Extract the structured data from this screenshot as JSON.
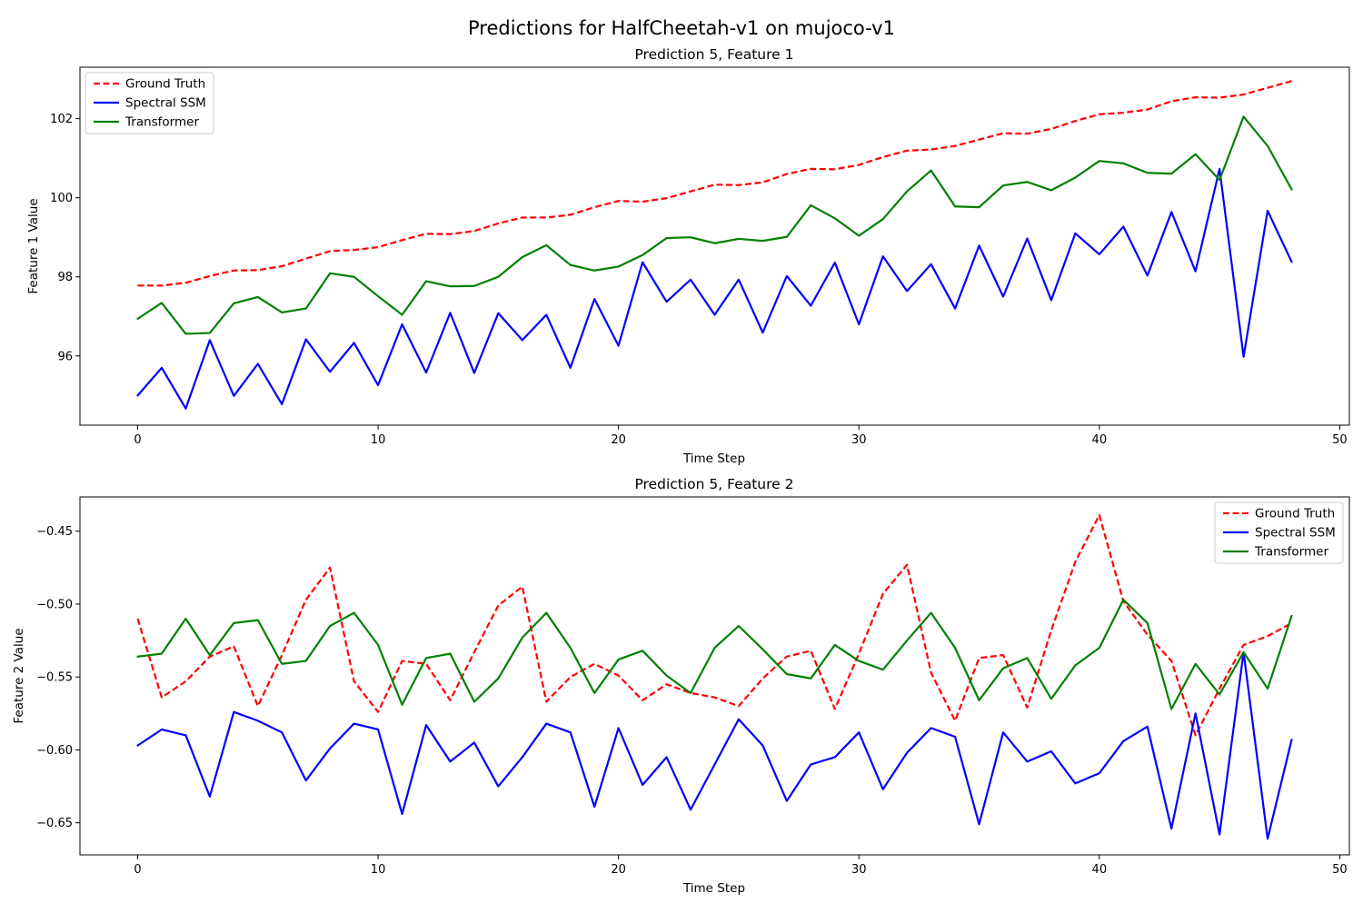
{
  "figure": {
    "suptitle": "Predictions for HalfCheetah-v1 on mujoco-v1"
  },
  "chart_data": [
    {
      "type": "line",
      "title": "Prediction 5, Feature 1",
      "xlabel": "Time Step",
      "ylabel": "Feature 1 Value",
      "xlim": [
        -2.4,
        50.4
      ],
      "ylim": [
        94.25,
        103.3
      ],
      "xticks": [
        0,
        10,
        20,
        30,
        40,
        50
      ],
      "yticks": [
        96,
        98,
        100,
        102
      ],
      "legend_position": "upper-left",
      "grid": false,
      "x": [
        0,
        1,
        2,
        3,
        4,
        5,
        6,
        7,
        8,
        9,
        10,
        11,
        12,
        13,
        14,
        15,
        16,
        17,
        18,
        19,
        20,
        21,
        22,
        23,
        24,
        25,
        26,
        27,
        28,
        29,
        30,
        31,
        32,
        33,
        34,
        35,
        36,
        37,
        38,
        39,
        40,
        41,
        42,
        43,
        44,
        45,
        46,
        47,
        48
      ],
      "series": [
        {
          "name": "Ground Truth",
          "color": "#ff0000",
          "dashed": true,
          "values": [
            97.78,
            97.78,
            97.85,
            98.02,
            98.16,
            98.17,
            98.27,
            98.46,
            98.65,
            98.68,
            98.75,
            98.93,
            99.09,
            99.08,
            99.16,
            99.35,
            99.5,
            99.5,
            99.57,
            99.76,
            99.92,
            99.9,
            99.99,
            100.16,
            100.33,
            100.32,
            100.39,
            100.6,
            100.73,
            100.72,
            100.83,
            101.03,
            101.19,
            101.22,
            101.31,
            101.47,
            101.63,
            101.62,
            101.74,
            101.94,
            102.11,
            102.15,
            102.23,
            102.44,
            102.54,
            102.53,
            102.61,
            102.78,
            102.95
          ]
        },
        {
          "name": "Spectral SSM",
          "color": "#0000ff",
          "dashed": false,
          "values": [
            95.0,
            95.7,
            94.67,
            96.4,
            94.99,
            95.8,
            94.78,
            96.42,
            95.6,
            96.33,
            95.26,
            96.8,
            95.58,
            97.09,
            95.57,
            97.08,
            96.4,
            97.04,
            95.7,
            97.44,
            96.26,
            98.37,
            97.37,
            97.93,
            97.04,
            97.93,
            96.59,
            98.02,
            97.27,
            98.36,
            96.8,
            98.52,
            97.64,
            98.32,
            97.2,
            98.79,
            97.5,
            98.97,
            97.41,
            99.1,
            98.57,
            99.27,
            98.03,
            99.64,
            98.14,
            100.73,
            95.98,
            99.67,
            98.38
          ]
        },
        {
          "name": "Transformer",
          "color": "#008000",
          "dashed": false,
          "values": [
            96.94,
            97.34,
            96.56,
            96.58,
            97.33,
            97.49,
            97.1,
            97.2,
            98.09,
            98.0,
            97.51,
            97.04,
            97.89,
            97.76,
            97.77,
            98.0,
            98.5,
            98.8,
            98.3,
            98.16,
            98.26,
            98.55,
            98.98,
            99.0,
            98.85,
            98.96,
            98.91,
            99.01,
            99.81,
            99.48,
            99.04,
            99.46,
            100.16,
            100.69,
            99.78,
            99.76,
            100.31,
            100.4,
            100.19,
            100.51,
            100.93,
            100.87,
            100.63,
            100.61,
            101.1,
            100.45,
            102.05,
            101.31,
            100.21
          ]
        }
      ]
    },
    {
      "type": "line",
      "title": "Prediction 5, Feature 2",
      "xlabel": "Time Step",
      "ylabel": "Feature 2 Value",
      "xlim": [
        -2.4,
        50.4
      ],
      "ylim": [
        -0.672,
        -0.4265
      ],
      "xticks": [
        0,
        10,
        20,
        30,
        40,
        50
      ],
      "yticks": [
        -0.65,
        -0.6,
        -0.55,
        -0.5,
        -0.45
      ],
      "yticklabels": [
        "−0.65",
        "−0.60",
        "−0.55",
        "−0.50",
        "−0.45"
      ],
      "legend_position": "upper-right",
      "grid": false,
      "x": [
        0,
        1,
        2,
        3,
        4,
        5,
        6,
        7,
        8,
        9,
        10,
        11,
        12,
        13,
        14,
        15,
        16,
        17,
        18,
        19,
        20,
        21,
        22,
        23,
        24,
        25,
        26,
        27,
        28,
        29,
        30,
        31,
        32,
        33,
        34,
        35,
        36,
        37,
        38,
        39,
        40,
        41,
        42,
        43,
        44,
        45,
        46,
        47,
        48
      ],
      "series": [
        {
          "name": "Ground Truth",
          "color": "#ff0000",
          "dashed": true,
          "values": [
            -0.51,
            -0.564,
            -0.553,
            -0.536,
            -0.529,
            -0.57,
            -0.535,
            -0.497,
            -0.475,
            -0.553,
            -0.574,
            -0.539,
            -0.541,
            -0.566,
            -0.533,
            -0.501,
            -0.488,
            -0.567,
            -0.55,
            -0.541,
            -0.549,
            -0.566,
            -0.555,
            -0.561,
            -0.564,
            -0.57,
            -0.551,
            -0.536,
            -0.532,
            -0.572,
            -0.534,
            -0.493,
            -0.473,
            -0.547,
            -0.58,
            -0.537,
            -0.535,
            -0.571,
            -0.518,
            -0.471,
            -0.439,
            -0.498,
            -0.521,
            -0.539,
            -0.59,
            -0.558,
            -0.528,
            -0.522,
            -0.513
          ]
        },
        {
          "name": "Spectral SSM",
          "color": "#0000ff",
          "dashed": false,
          "values": [
            -0.597,
            -0.586,
            -0.59,
            -0.632,
            -0.574,
            -0.58,
            -0.588,
            -0.621,
            -0.599,
            -0.582,
            -0.586,
            -0.644,
            -0.583,
            -0.608,
            -0.595,
            -0.625,
            -0.605,
            -0.582,
            -0.588,
            -0.639,
            -0.585,
            -0.624,
            -0.605,
            -0.641,
            -0.61,
            -0.579,
            -0.597,
            -0.635,
            -0.61,
            -0.605,
            -0.588,
            -0.627,
            -0.602,
            -0.585,
            -0.591,
            -0.651,
            -0.588,
            -0.608,
            -0.601,
            -0.623,
            -0.616,
            -0.594,
            -0.584,
            -0.654,
            -0.575,
            -0.658,
            -0.533,
            -0.661,
            -0.593
          ]
        },
        {
          "name": "Transformer",
          "color": "#008000",
          "dashed": false,
          "values": [
            -0.536,
            -0.534,
            -0.51,
            -0.535,
            -0.513,
            -0.511,
            -0.541,
            -0.539,
            -0.515,
            -0.506,
            -0.528,
            -0.569,
            -0.537,
            -0.534,
            -0.567,
            -0.551,
            -0.523,
            -0.506,
            -0.53,
            -0.561,
            -0.538,
            -0.532,
            -0.549,
            -0.561,
            -0.53,
            -0.515,
            -0.531,
            -0.548,
            -0.551,
            -0.528,
            -0.539,
            -0.545,
            -0.525,
            -0.506,
            -0.53,
            -0.566,
            -0.544,
            -0.537,
            -0.565,
            -0.542,
            -0.53,
            -0.497,
            -0.513,
            -0.572,
            -0.541,
            -0.562,
            -0.533,
            -0.558,
            -0.508
          ]
        }
      ]
    }
  ]
}
